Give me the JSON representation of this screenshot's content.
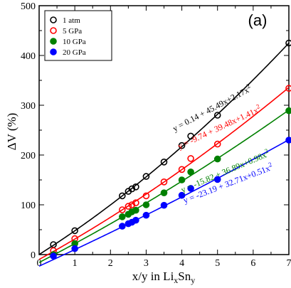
{
  "chart_data": {
    "type": "scatter",
    "title": "",
    "panel_label": "(a)",
    "xlabel": {
      "main": "x/y in Li",
      "sub1": "x",
      "mid": "Sn",
      "sub2": "y"
    },
    "ylabel": "ΔV (%)",
    "xlim": [
      0,
      7
    ],
    "ylim": [
      0,
      500
    ],
    "xticks": [
      0,
      1,
      2,
      3,
      4,
      5,
      6,
      7
    ],
    "yticks": [
      0,
      100,
      200,
      300,
      400,
      500
    ],
    "grid": false,
    "legend_position": "top-left",
    "series": [
      {
        "name": "1 atm",
        "color": "#000000",
        "filled": false,
        "x": [
          0.4,
          1.0,
          2.33,
          2.5,
          2.6,
          2.71,
          3.0,
          3.5,
          4.0,
          4.25,
          5.0,
          7.0
        ],
        "y": [
          20,
          48,
          118,
          127,
          132,
          136,
          157,
          186,
          219,
          238,
          280,
          425
        ],
        "fit": {
          "c0": 0.14,
          "c1": 45.49,
          "c2": 2.17
        },
        "fit_label": {
          "prefix": "y = 0.14 + 45.49x+2.17x",
          "exp": "2"
        }
      },
      {
        "name": "5 GPa",
        "color": "#ff0000",
        "filled": false,
        "x": [
          0.4,
          1.0,
          2.33,
          2.5,
          2.6,
          2.71,
          3.0,
          3.5,
          4.0,
          4.25,
          5.0,
          7.0
        ],
        "y": [
          8,
          32,
          90,
          97,
          100,
          104,
          118,
          146,
          171,
          193,
          222,
          334
        ],
        "fit": {
          "c0": -9.74,
          "c1": 39.48,
          "c2": 1.41
        },
        "fit_label": {
          "prefix": "y = -9.74 + 39.48x+1.41x",
          "exp": "2"
        }
      },
      {
        "name": "10 GPa",
        "color": "#008000",
        "filled": true,
        "x": [
          0.4,
          1.0,
          2.33,
          2.5,
          2.6,
          2.71,
          3.0,
          3.5,
          4.0,
          4.25,
          5.0,
          7.0
        ],
        "y": [
          0,
          22,
          76,
          81,
          86,
          89,
          100,
          124,
          150,
          166,
          192,
          289
        ],
        "fit": {
          "c0": -15.82,
          "c1": 36.89,
          "c2": 0.98
        },
        "fit_label": {
          "prefix": "y = -15.82 + 36.89x+0.98x",
          "exp": "2"
        }
      },
      {
        "name": "20 GPa",
        "color": "#0000ff",
        "filled": true,
        "x": [
          0.4,
          1.0,
          2.33,
          2.5,
          2.6,
          2.71,
          3.0,
          3.5,
          4.0,
          4.25,
          5.0,
          7.0
        ],
        "y": [
          -3,
          12,
          57,
          62,
          65,
          69,
          79,
          99,
          119,
          133,
          151,
          230
        ],
        "fit": {
          "c0": -23.19,
          "c1": 32.71,
          "c2": 0.51
        },
        "fit_label": {
          "prefix": "y = -23.19 + 32.71x+0.51x",
          "exp": "2"
        }
      }
    ]
  }
}
